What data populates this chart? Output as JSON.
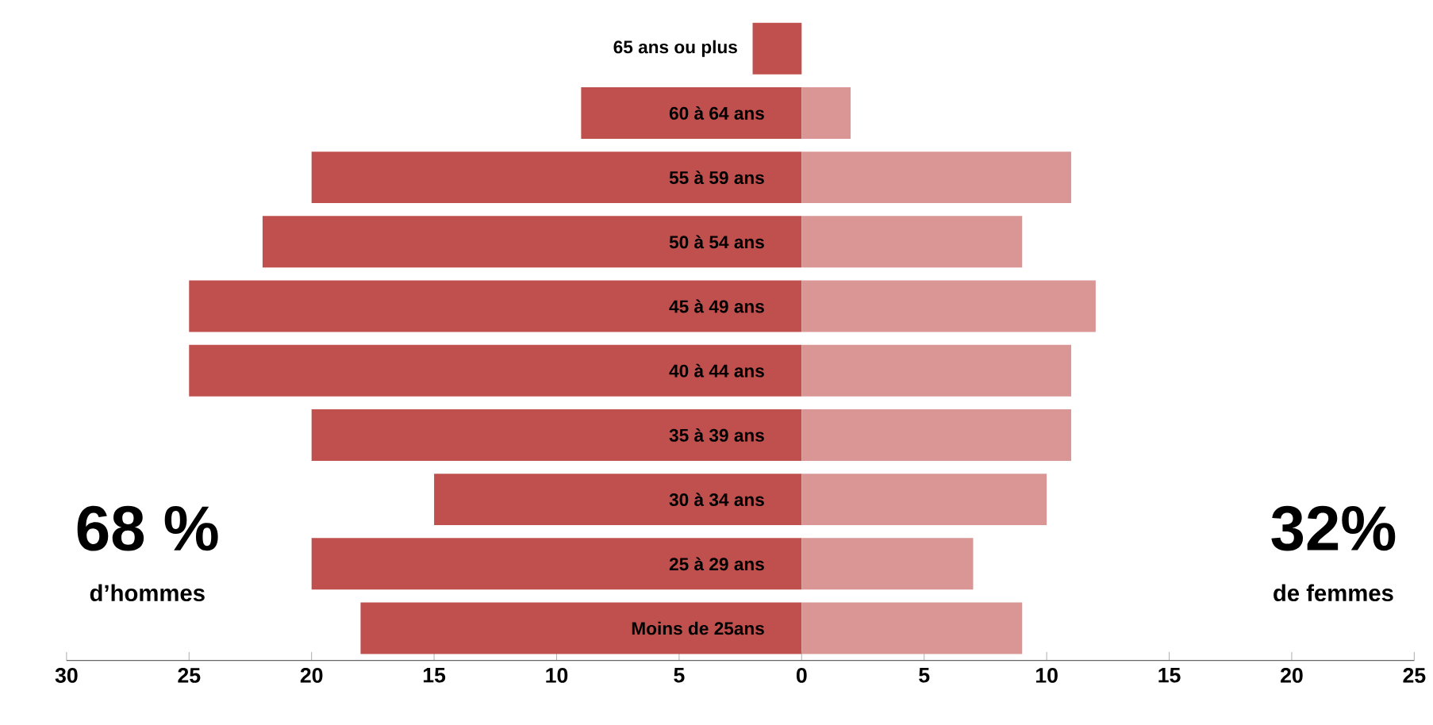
{
  "chart_data": {
    "type": "bar",
    "orientation": "horizontal",
    "stacked": true,
    "categories": [
      "65 ans ou plus",
      "60 à 64 ans",
      "55 à 59 ans",
      "50 à 54 ans",
      "45 à 49 ans",
      "40 à 44 ans",
      "35 à 39 ans",
      "30 à 34 ans",
      "25 à 29 ans",
      "Moins de 25ans"
    ],
    "series": [
      {
        "color": "#c0504d",
        "values": [
          -2,
          -9,
          -20,
          -22,
          -25,
          -25,
          -20,
          -15,
          -20,
          -18
        ]
      },
      {
        "color": "#d99694",
        "values": [
          0,
          2,
          11,
          9,
          12,
          11,
          11,
          10,
          7,
          9
        ]
      }
    ],
    "xlim": [
      -30,
      25
    ],
    "xticks": [
      {
        "value": -30,
        "label": "30"
      },
      {
        "value": -25,
        "label": "25"
      },
      {
        "value": -20,
        "label": "20"
      },
      {
        "value": -15,
        "label": "15"
      },
      {
        "value": -10,
        "label": "10"
      },
      {
        "value": -5,
        "label": "5"
      },
      0,
      5,
      10,
      15,
      20,
      25
    ],
    "annotations": [
      "68 %",
      "d’hommes",
      "32%",
      "de femmes"
    ]
  }
}
